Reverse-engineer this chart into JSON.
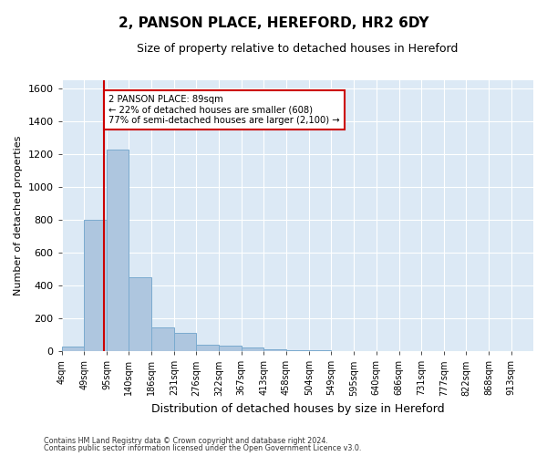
{
  "title_line1": "2, PANSON PLACE, HEREFORD, HR2 6DY",
  "title_line2": "Size of property relative to detached houses in Hereford",
  "xlabel": "Distribution of detached houses by size in Hereford",
  "ylabel": "Number of detached properties",
  "bin_labels": [
    "4sqm",
    "49sqm",
    "95sqm",
    "140sqm",
    "186sqm",
    "231sqm",
    "276sqm",
    "322sqm",
    "367sqm",
    "413sqm",
    "458sqm",
    "504sqm",
    "549sqm",
    "595sqm",
    "640sqm",
    "686sqm",
    "731sqm",
    "777sqm",
    "822sqm",
    "868sqm",
    "913sqm"
  ],
  "bin_edges": [
    4,
    49,
    95,
    140,
    186,
    231,
    276,
    322,
    367,
    413,
    458,
    504,
    549,
    595,
    640,
    686,
    731,
    777,
    822,
    868,
    913,
    958
  ],
  "bar_heights": [
    30,
    800,
    1230,
    450,
    145,
    110,
    40,
    35,
    25,
    10,
    5,
    5,
    0,
    0,
    0,
    0,
    0,
    0,
    0,
    0,
    0
  ],
  "bar_color": "#aec6df",
  "bar_edgecolor": "#7aaacf",
  "property_size": 89,
  "property_line_color": "#cc0000",
  "annotation_text_line1": "2 PANSON PLACE: 89sqm",
  "annotation_text_line2": "← 22% of detached houses are smaller (608)",
  "annotation_text_line3": "77% of semi-detached houses are larger (2,100) →",
  "annotation_box_color": "#ffffff",
  "annotation_box_edgecolor": "#cc0000",
  "ylim": [
    0,
    1650
  ],
  "yticks": [
    0,
    200,
    400,
    600,
    800,
    1000,
    1200,
    1400,
    1600
  ],
  "footer_line1": "Contains HM Land Registry data © Crown copyright and database right 2024.",
  "footer_line2": "Contains public sector information licensed under the Open Government Licence v3.0.",
  "bg_color": "#ffffff",
  "plot_bg_color": "#dce9f5"
}
